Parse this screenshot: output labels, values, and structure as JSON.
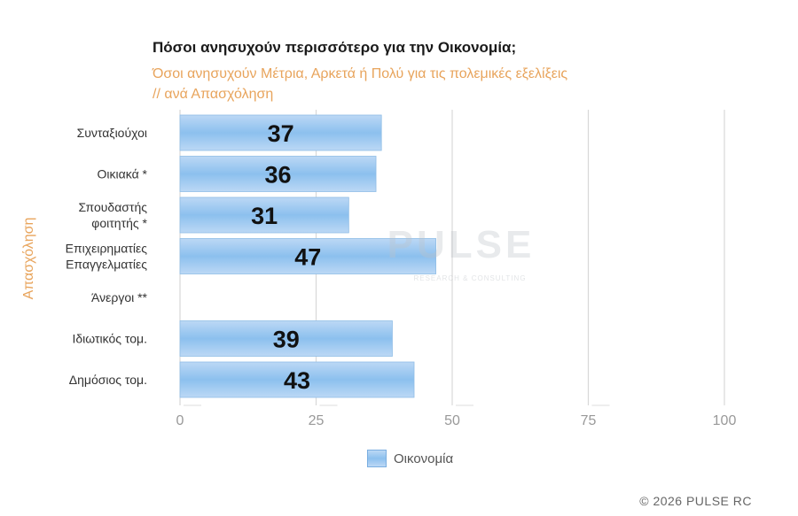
{
  "chart_data": {
    "type": "bar",
    "orientation": "horizontal",
    "title": "Πόσοι ανησυχούν περισσότερο για την Οικονομία;",
    "subtitle": "Όσοι ανησυχούν Μέτρια, Αρκετά ή Πολύ για τις πολεμικές εξελίξεις\n // ανά Απασχόληση",
    "ylabel": "Απασχόληση",
    "categories": [
      "Συνταξιούχοι",
      "Οικιακά *",
      "Σπουδαστής\nφοιτητής *",
      "Επιχειρηματίες\nΕπαγγελματίες",
      "Άνεργοι **",
      "Ιδιωτικός τομ.",
      "Δημόσιος τομ."
    ],
    "series": [
      {
        "name": "Οικονομία",
        "values": [
          37,
          36,
          31,
          47,
          null,
          39,
          43
        ]
      }
    ],
    "xlim": [
      0,
      100
    ],
    "xticks": [
      "0",
      "25",
      "50",
      "75",
      "100"
    ],
    "grid": true,
    "legend_position": "bottom",
    "bar_color": "#8cc0ee"
  },
  "watermark": {
    "main": "PULSE",
    "sub": "RESEARCH & CONSULTING"
  },
  "copyright": "© 2026 PULSE RC"
}
